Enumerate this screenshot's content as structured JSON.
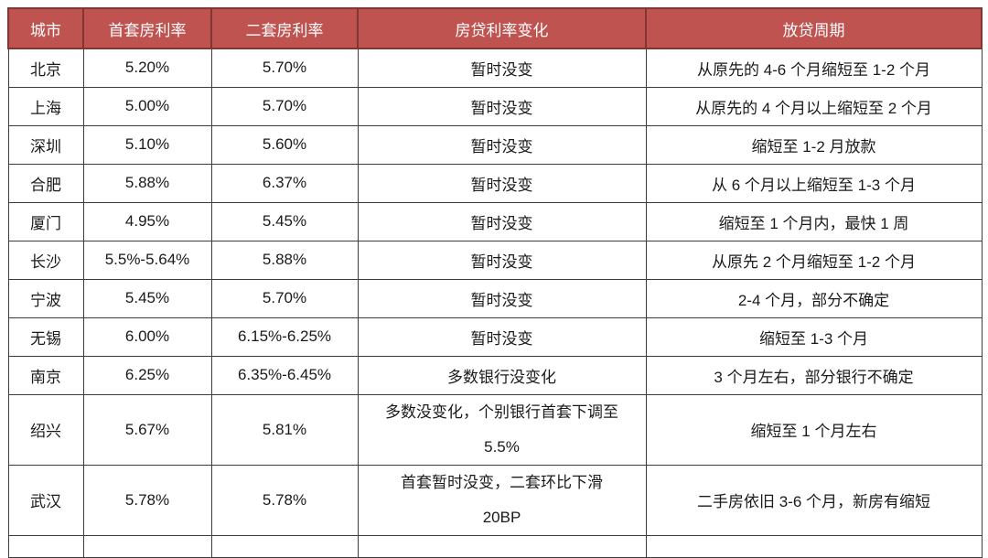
{
  "table": {
    "colors": {
      "header_bg": "#BE5350",
      "header_border": "#823532",
      "header_text": "#FFFFFF",
      "body_border": "#3C3C3C",
      "body_text": "#1A1A1A"
    },
    "columns": [
      {
        "key": "city",
        "label": "城市"
      },
      {
        "key": "first-home-rate",
        "label": "首套房利率"
      },
      {
        "key": "second-home-rate",
        "label": "二套房利率"
      },
      {
        "key": "rate-change",
        "label": "房贷利率变化"
      },
      {
        "key": "lending-cycle",
        "label": "放贷周期"
      }
    ],
    "rows": [
      [
        "北京",
        "5.20%",
        "5.70%",
        "暂时没变",
        "从原先的 4-6 个月缩短至 1-2 个月"
      ],
      [
        "上海",
        "5.00%",
        "5.70%",
        "暂时没变",
        "从原先的 4 个月以上缩短至 2 个月"
      ],
      [
        "深圳",
        "5.10%",
        "5.60%",
        "暂时没变",
        "缩短至 1-2 月放款"
      ],
      [
        "合肥",
        "5.88%",
        "6.37%",
        "暂时没变",
        "从 6 个月以上缩短至 1-3 个月"
      ],
      [
        "厦门",
        "4.95%",
        "5.45%",
        "暂时没变",
        "缩短至 1 个月内，最快 1 周"
      ],
      [
        "长沙",
        "5.5%-5.64%",
        "5.88%",
        "暂时没变",
        "从原先 2 个月缩短至 1-2 个月"
      ],
      [
        "宁波",
        "5.45%",
        "5.70%",
        "暂时没变",
        "2-4 个月，部分不确定"
      ],
      [
        "无锡",
        "6.00%",
        "6.15%-6.25%",
        "暂时没变",
        "缩短至 1-3 个月"
      ],
      [
        "南京",
        "6.25%",
        "6.35%-6.45%",
        "多数银行没变化",
        "3 个月左右，部分银行不确定"
      ],
      [
        "绍兴",
        "5.67%",
        "5.81%",
        "多数没变化，个别银行首套下调至\n5.5%",
        "缩短至 1 个月左右"
      ],
      [
        "武汉",
        "5.78%",
        "5.78%",
        "首套暂时没变，二套环比下滑\n20BP",
        "二手房依旧 3-6 个月，新房有缩短"
      ]
    ]
  },
  "chart_data": {
    "type": "table",
    "title": "",
    "columns": [
      "城市",
      "首套房利率",
      "二套房利率",
      "房贷利率变化",
      "放贷周期"
    ],
    "rows": [
      [
        "北京",
        "5.20%",
        "5.70%",
        "暂时没变",
        "从原先的 4-6 个月缩短至 1-2 个月"
      ],
      [
        "上海",
        "5.00%",
        "5.70%",
        "暂时没变",
        "从原先的 4 个月以上缩短至 2 个月"
      ],
      [
        "深圳",
        "5.10%",
        "5.60%",
        "暂时没变",
        "缩短至 1-2 月放款"
      ],
      [
        "合肥",
        "5.88%",
        "6.37%",
        "暂时没变",
        "从 6 个月以上缩短至 1-3 个月"
      ],
      [
        "厦门",
        "4.95%",
        "5.45%",
        "暂时没变",
        "缩短至 1 个月内，最快 1 周"
      ],
      [
        "长沙",
        "5.5%-5.64%",
        "5.88%",
        "暂时没变",
        "从原先 2 个月缩短至 1-2 个月"
      ],
      [
        "宁波",
        "5.45%",
        "5.70%",
        "暂时没变",
        "2-4 个月，部分不确定"
      ],
      [
        "无锡",
        "6.00%",
        "6.15%-6.25%",
        "暂时没变",
        "缩短至 1-3 个月"
      ],
      [
        "南京",
        "6.25%",
        "6.35%-6.45%",
        "多数银行没变化",
        "3 个月左右，部分银行不确定"
      ],
      [
        "绍兴",
        "5.67%",
        "5.81%",
        "多数没变化，个别银行首套下调至 5.5%",
        "缩短至 1 个月左右"
      ],
      [
        "武汉",
        "5.78%",
        "5.78%",
        "首套暂时没变，二套环比下滑 20BP",
        "二手房依旧 3-6 个月，新房有缩短"
      ]
    ]
  }
}
